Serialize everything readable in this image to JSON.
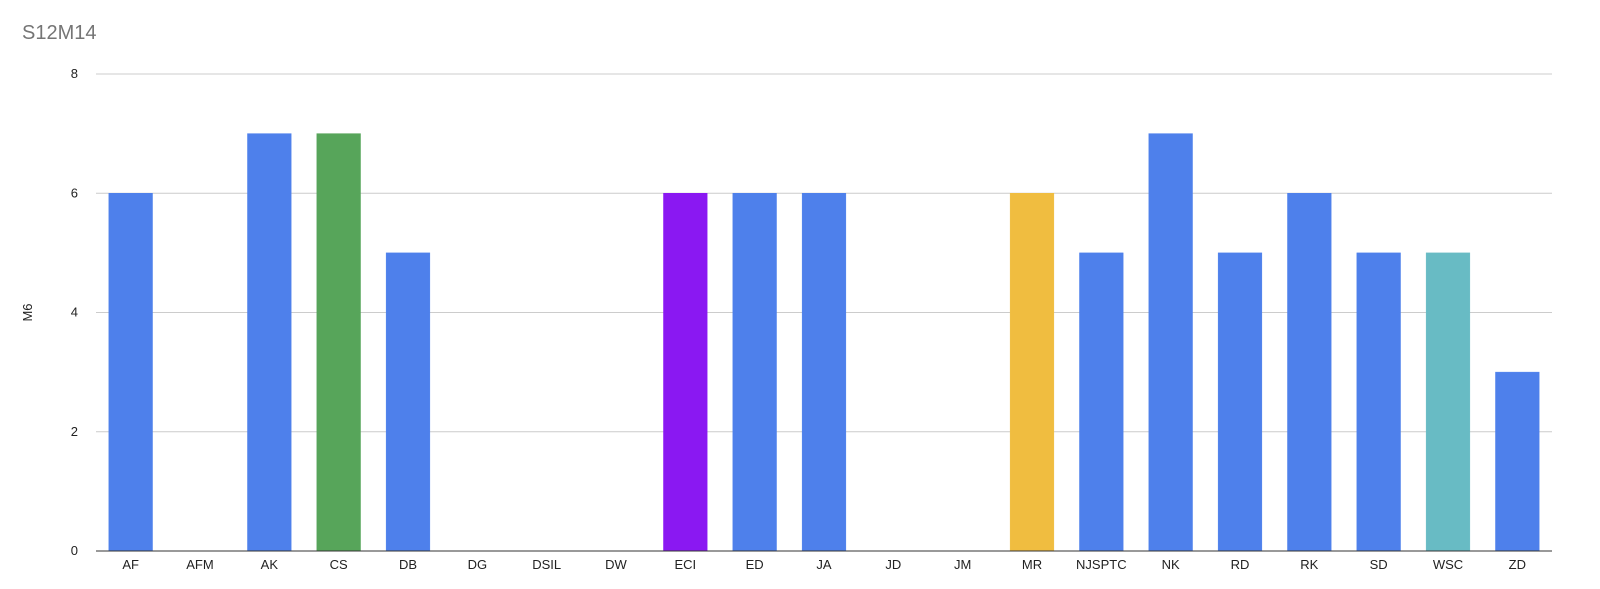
{
  "chart_data": {
    "type": "bar",
    "title": "S12M14",
    "xlabel": "",
    "ylabel": "M6",
    "ylim": [
      0,
      8
    ],
    "yticks": [
      0,
      2,
      4,
      6,
      8
    ],
    "grid": true,
    "legend": "none",
    "categories": [
      "AF",
      "AFM",
      "AK",
      "CS",
      "DB",
      "DG",
      "DSIL",
      "DW",
      "ECI",
      "ED",
      "JA",
      "JD",
      "JM",
      "MR",
      "NJSPTC",
      "NK",
      "RD",
      "RK",
      "SD",
      "WSC",
      "ZD"
    ],
    "values": [
      6,
      0,
      7,
      7,
      5,
      0,
      0,
      0,
      6,
      6,
      6,
      0,
      0,
      6,
      5,
      7,
      5,
      6,
      5,
      5,
      3
    ],
    "colors": [
      "#4e80eb",
      "#4e80eb",
      "#4e80eb",
      "#57a55a",
      "#4e80eb",
      "#4e80eb",
      "#4e80eb",
      "#4e80eb",
      "#8a18f2",
      "#4e80eb",
      "#4e80eb",
      "#4e80eb",
      "#4e80eb",
      "#f0bd40",
      "#4e80eb",
      "#4e80eb",
      "#4e80eb",
      "#4e80eb",
      "#4e80eb",
      "#68bbc4",
      "#4e80eb"
    ]
  }
}
